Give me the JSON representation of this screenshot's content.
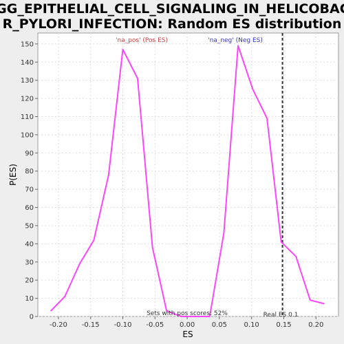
{
  "chart_data": {
    "type": "line",
    "title_lines": [
      "KEGG_EPITHELIAL_CELL_SIGNALING_IN_HELICOBACTE",
      "R_PYLORI_INFECTION: Random ES distribution"
    ],
    "xlabel": "ES",
    "ylabel": "P(ES)",
    "xlim": [
      -0.232,
      0.235
    ],
    "ylim": [
      0,
      156
    ],
    "x_ticks": [
      -0.2,
      -0.15,
      -0.1,
      -0.05,
      0.0,
      0.05,
      0.1,
      0.15,
      0.2
    ],
    "x_tick_labels": [
      "-0.20",
      "-0.15",
      "-0.10",
      "-0.05",
      "0.00",
      "0.05",
      "0.10",
      "0.15",
      "0.20"
    ],
    "y_ticks": [
      0,
      10,
      20,
      30,
      40,
      50,
      60,
      70,
      80,
      90,
      100,
      110,
      120,
      130,
      140,
      150
    ],
    "y_tick_labels": [
      "0",
      "10",
      "20",
      "30",
      "40",
      "50",
      "60",
      "70",
      "80",
      "90",
      "100",
      "110",
      "120",
      "130",
      "140",
      "150"
    ],
    "grid": true,
    "series": [
      {
        "color": "#ff44ff",
        "x": [
          -0.212,
          -0.19,
          -0.167,
          -0.145,
          -0.122,
          -0.1,
          -0.077,
          -0.054,
          -0.032,
          -0.009,
          0.013,
          0.035,
          0.057,
          0.079,
          0.102,
          0.124,
          0.146,
          0.169,
          0.191,
          0.213
        ],
        "y": [
          3,
          11,
          29,
          42,
          78,
          147,
          131,
          38,
          3,
          0,
          0,
          0,
          46,
          149,
          125,
          109,
          41,
          33,
          9,
          7
        ]
      }
    ],
    "annotations": {
      "pos_label": "'na_pos' (Pos ES)",
      "neg_label": "'na_neg' (Neg ES)",
      "sets_label": "Sets with pos scores: 52%",
      "real_es_label": "Real ES 0.1",
      "real_es_value": 0.148,
      "pos_color": "#d04040",
      "neg_color": "#3333cc"
    }
  }
}
